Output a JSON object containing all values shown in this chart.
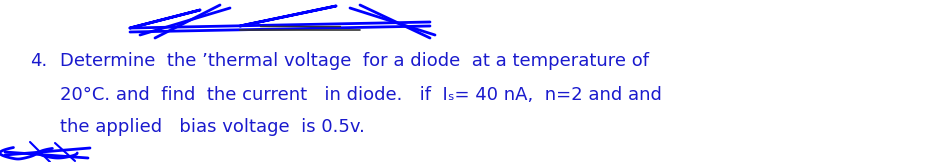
{
  "bg_color": "#ffffff",
  "text_color": "#1a1acd",
  "scribble_color": "#0000ff",
  "number": "4.",
  "line1": "Determine  the éthermal voltage  for a diode  at a temperature of",
  "line2": "20°C. and  find  the current   in diode.   if  Iₛ= 40 nA,  n=2 and and",
  "line3": "the applied   bias voltage  is 0.5v.",
  "font_size": 13,
  "fig_width": 9.49,
  "fig_height": 1.62,
  "dpi": 100
}
